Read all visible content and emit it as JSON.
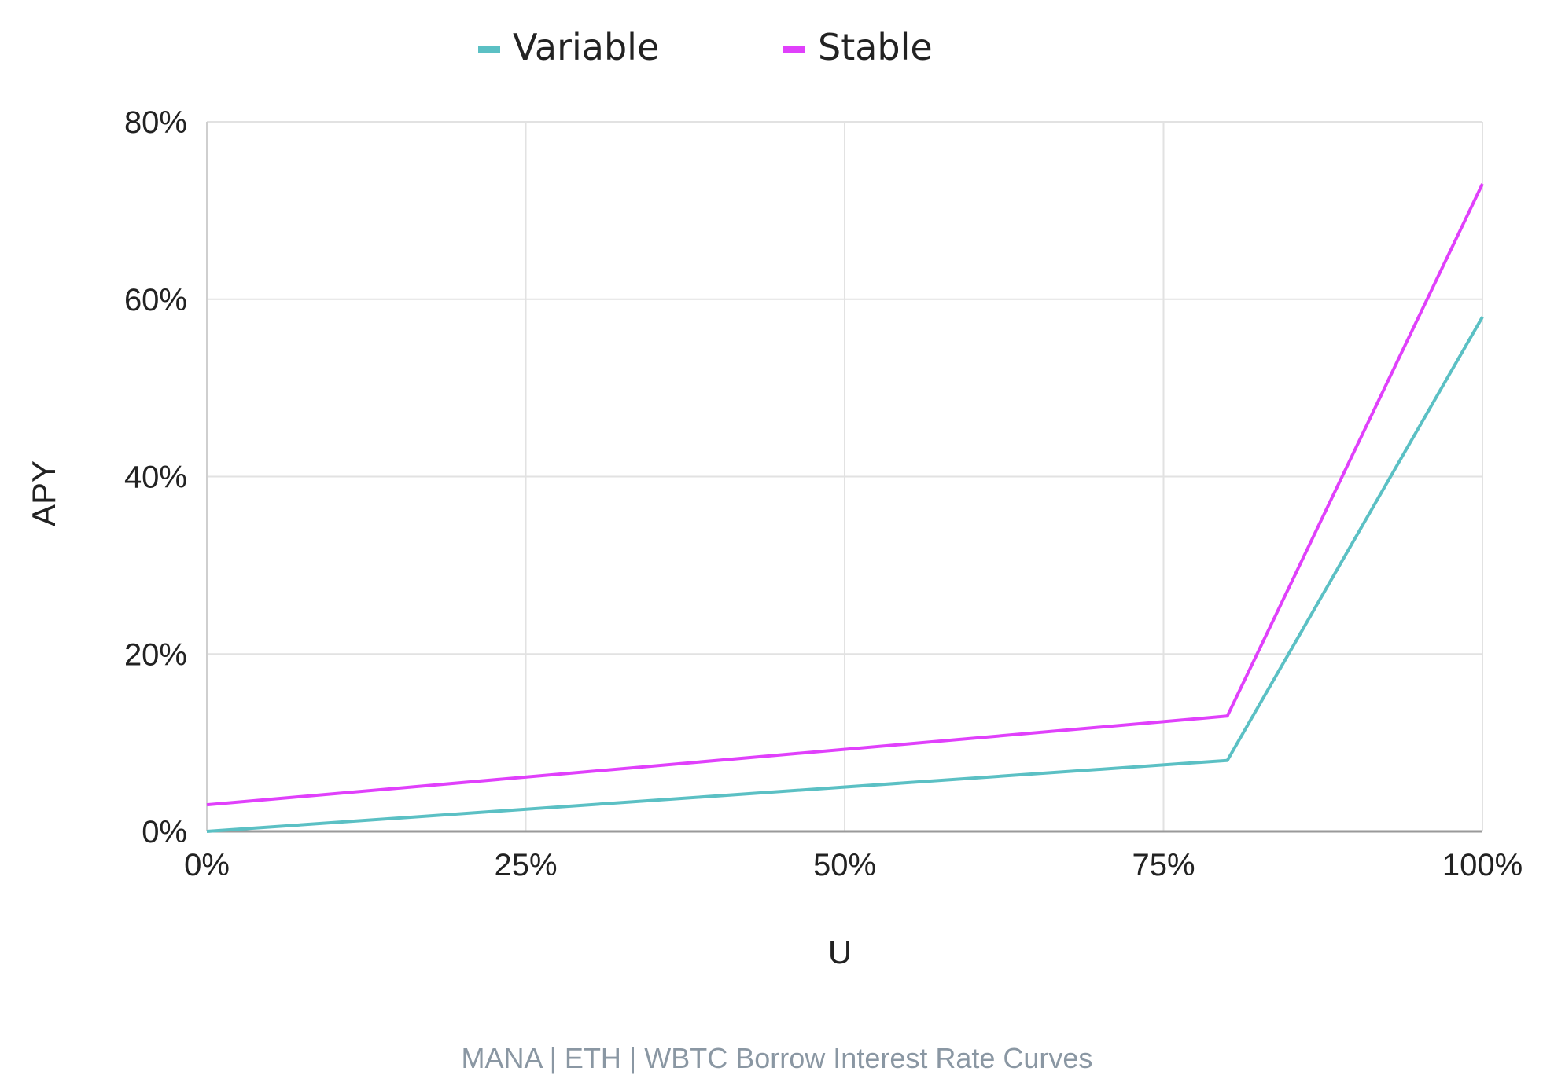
{
  "caption": "MANA | ETH | WBTC Borrow Interest Rate Curves",
  "chart_data": {
    "type": "line",
    "title": "",
    "xlabel": "U",
    "ylabel": "APY",
    "xlim": [
      0,
      100
    ],
    "ylim": [
      0,
      80
    ],
    "x_ticks": [
      0,
      25,
      50,
      75,
      100
    ],
    "y_ticks": [
      0,
      20,
      40,
      60,
      80
    ],
    "x_tick_labels": [
      "0%",
      "25%",
      "50%",
      "75%",
      "100%"
    ],
    "y_tick_labels": [
      "0%",
      "20%",
      "40%",
      "60%",
      "80%"
    ],
    "grid": true,
    "legend_position": "top",
    "series": [
      {
        "name": "Variable",
        "color": "#5bc0c4",
        "points": [
          [
            0,
            0
          ],
          [
            80,
            8
          ],
          [
            100,
            58
          ]
        ]
      },
      {
        "name": "Stable",
        "color": "#e040fb",
        "points": [
          [
            0,
            3
          ],
          [
            80,
            13
          ],
          [
            100,
            73
          ]
        ]
      }
    ]
  }
}
